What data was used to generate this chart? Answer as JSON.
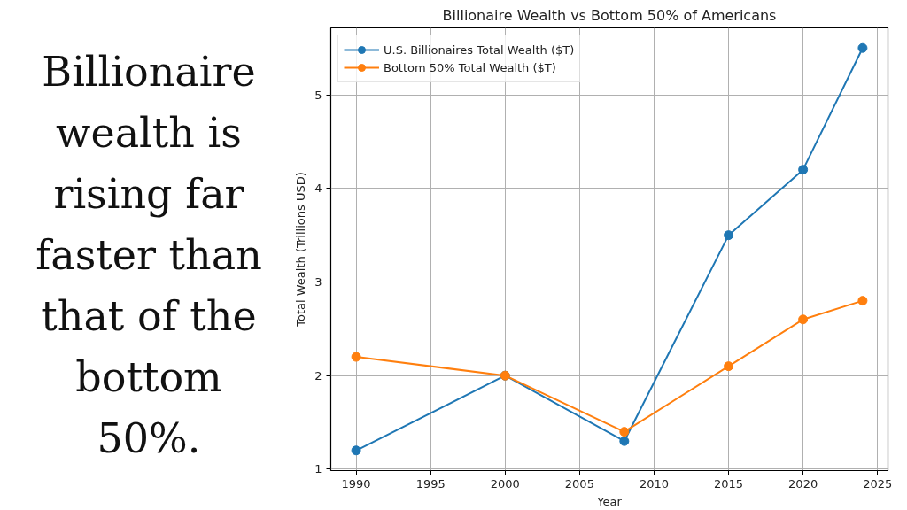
{
  "chart_data": {
    "type": "line",
    "title": "Billionaire Wealth vs Bottom 50% of Americans",
    "xlabel": "Year",
    "ylabel": "Total Wealth (Trillions USD)",
    "x": [
      1990,
      2000,
      2008,
      2015,
      2020,
      2024
    ],
    "series": [
      {
        "name": "U.S. Billionaires Total Wealth ($T)",
        "color": "#1f77b4",
        "values": [
          1.2,
          2.0,
          1.3,
          3.5,
          4.2,
          5.5
        ]
      },
      {
        "name": "Bottom 50% Total Wealth ($T)",
        "color": "#ff7f0e",
        "values": [
          2.2,
          2.0,
          1.4,
          2.1,
          2.6,
          2.8
        ]
      }
    ],
    "xlim": [
      1988.3,
      2025.7
    ],
    "ylim": [
      0.985,
      5.715
    ],
    "xticks": [
      1990,
      1995,
      2000,
      2005,
      2010,
      2015,
      2020,
      2025
    ],
    "yticks": [
      1,
      2,
      3,
      4,
      5
    ],
    "grid": true,
    "legend": "top left",
    "marker": "circle",
    "line_style": "solid",
    "annotations": [
      "Billionaire wealth is rising far faster than that of the bottom 50%."
    ]
  }
}
